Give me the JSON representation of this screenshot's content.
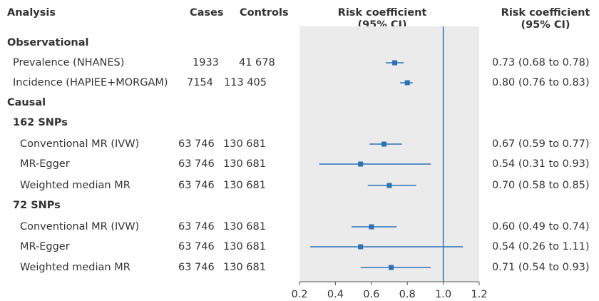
{
  "headers": {
    "analysis": "Analysis",
    "cases": "Cases",
    "controls": "Controls",
    "risk_line1": "Risk coefficient",
    "risk_line2": "(95% CI)",
    "risk2_line1": "Risk coefficient",
    "risk2_line2": "(95% CI)"
  },
  "rows": [
    {
      "label": "Observational",
      "kind": "section"
    },
    {
      "label": "Prevalence (NHANES)",
      "kind": "item",
      "cases": "1933",
      "controls": "41 678",
      "ci_text": "0.73 (0.68 to 0.78)"
    },
    {
      "label": "Incidence (HAPIEE+MORGAM)",
      "kind": "item",
      "cases": "7154",
      "controls": "113 405",
      "ci_text": "0.80 (0.76 to 0.83)"
    },
    {
      "label": "Causal",
      "kind": "section"
    },
    {
      "label": "162 SNPs",
      "kind": "subsection"
    },
    {
      "label": "Conventional MR (IVW)",
      "kind": "item",
      "cases": "63 746",
      "controls": "130 681",
      "ci_text": "0.67 (0.59 to 0.77)"
    },
    {
      "label": "MR-Egger",
      "kind": "item",
      "cases": "63 746",
      "controls": "130 681",
      "ci_text": "0.54 (0.31 to 0.93)"
    },
    {
      "label": "Weighted median MR",
      "kind": "item",
      "cases": "63 746",
      "controls": "130 681",
      "ci_text": "0.70 (0.58 to 0.85)"
    },
    {
      "label": "72 SNPs",
      "kind": "subsection"
    },
    {
      "label": "Conventional MR (IVW)",
      "kind": "item",
      "cases": "63 746",
      "controls": "130 681",
      "ci_text": "0.60 (0.49 to 0.74)"
    },
    {
      "label": "MR-Egger",
      "kind": "item",
      "cases": "63 746",
      "controls": "130 681",
      "ci_text": "0.54 (0.26 to 1.11)"
    },
    {
      "label": "Weighted median MR",
      "kind": "item",
      "cases": "63 746",
      "controls": "130 681",
      "ci_text": "0.71 (0.54 to 0.93)"
    }
  ],
  "chart_data": {
    "type": "forest",
    "x_ticks": [
      "0.2",
      "0.4",
      "0.6",
      "0.8",
      "1.0",
      "1.2"
    ],
    "xlim": [
      0.2,
      1.2
    ],
    "reference_line": 1.0,
    "series": [
      {
        "label": "Prevalence (NHANES)",
        "estimate": 0.73,
        "lower": 0.68,
        "upper": 0.78
      },
      {
        "label": "Incidence (HAPIEE+MORGAM)",
        "estimate": 0.8,
        "lower": 0.76,
        "upper": 0.83
      },
      {
        "label": "Conventional MR (IVW)",
        "estimate": 0.67,
        "lower": 0.59,
        "upper": 0.77
      },
      {
        "label": "MR-Egger",
        "estimate": 0.54,
        "lower": 0.31,
        "upper": 0.93
      },
      {
        "label": "Weighted median MR",
        "estimate": 0.7,
        "lower": 0.58,
        "upper": 0.85
      },
      {
        "label": "Conventional MR (IVW)",
        "estimate": 0.6,
        "lower": 0.49,
        "upper": 0.74
      },
      {
        "label": "MR-Egger",
        "estimate": 0.54,
        "lower": 0.26,
        "upper": 1.11
      },
      {
        "label": "Weighted median MR",
        "estimate": 0.71,
        "lower": 0.54,
        "upper": 0.93
      }
    ],
    "colors": {
      "marker": "#2a73b6",
      "panel": "#ebebeb",
      "axis": "#555555"
    }
  }
}
